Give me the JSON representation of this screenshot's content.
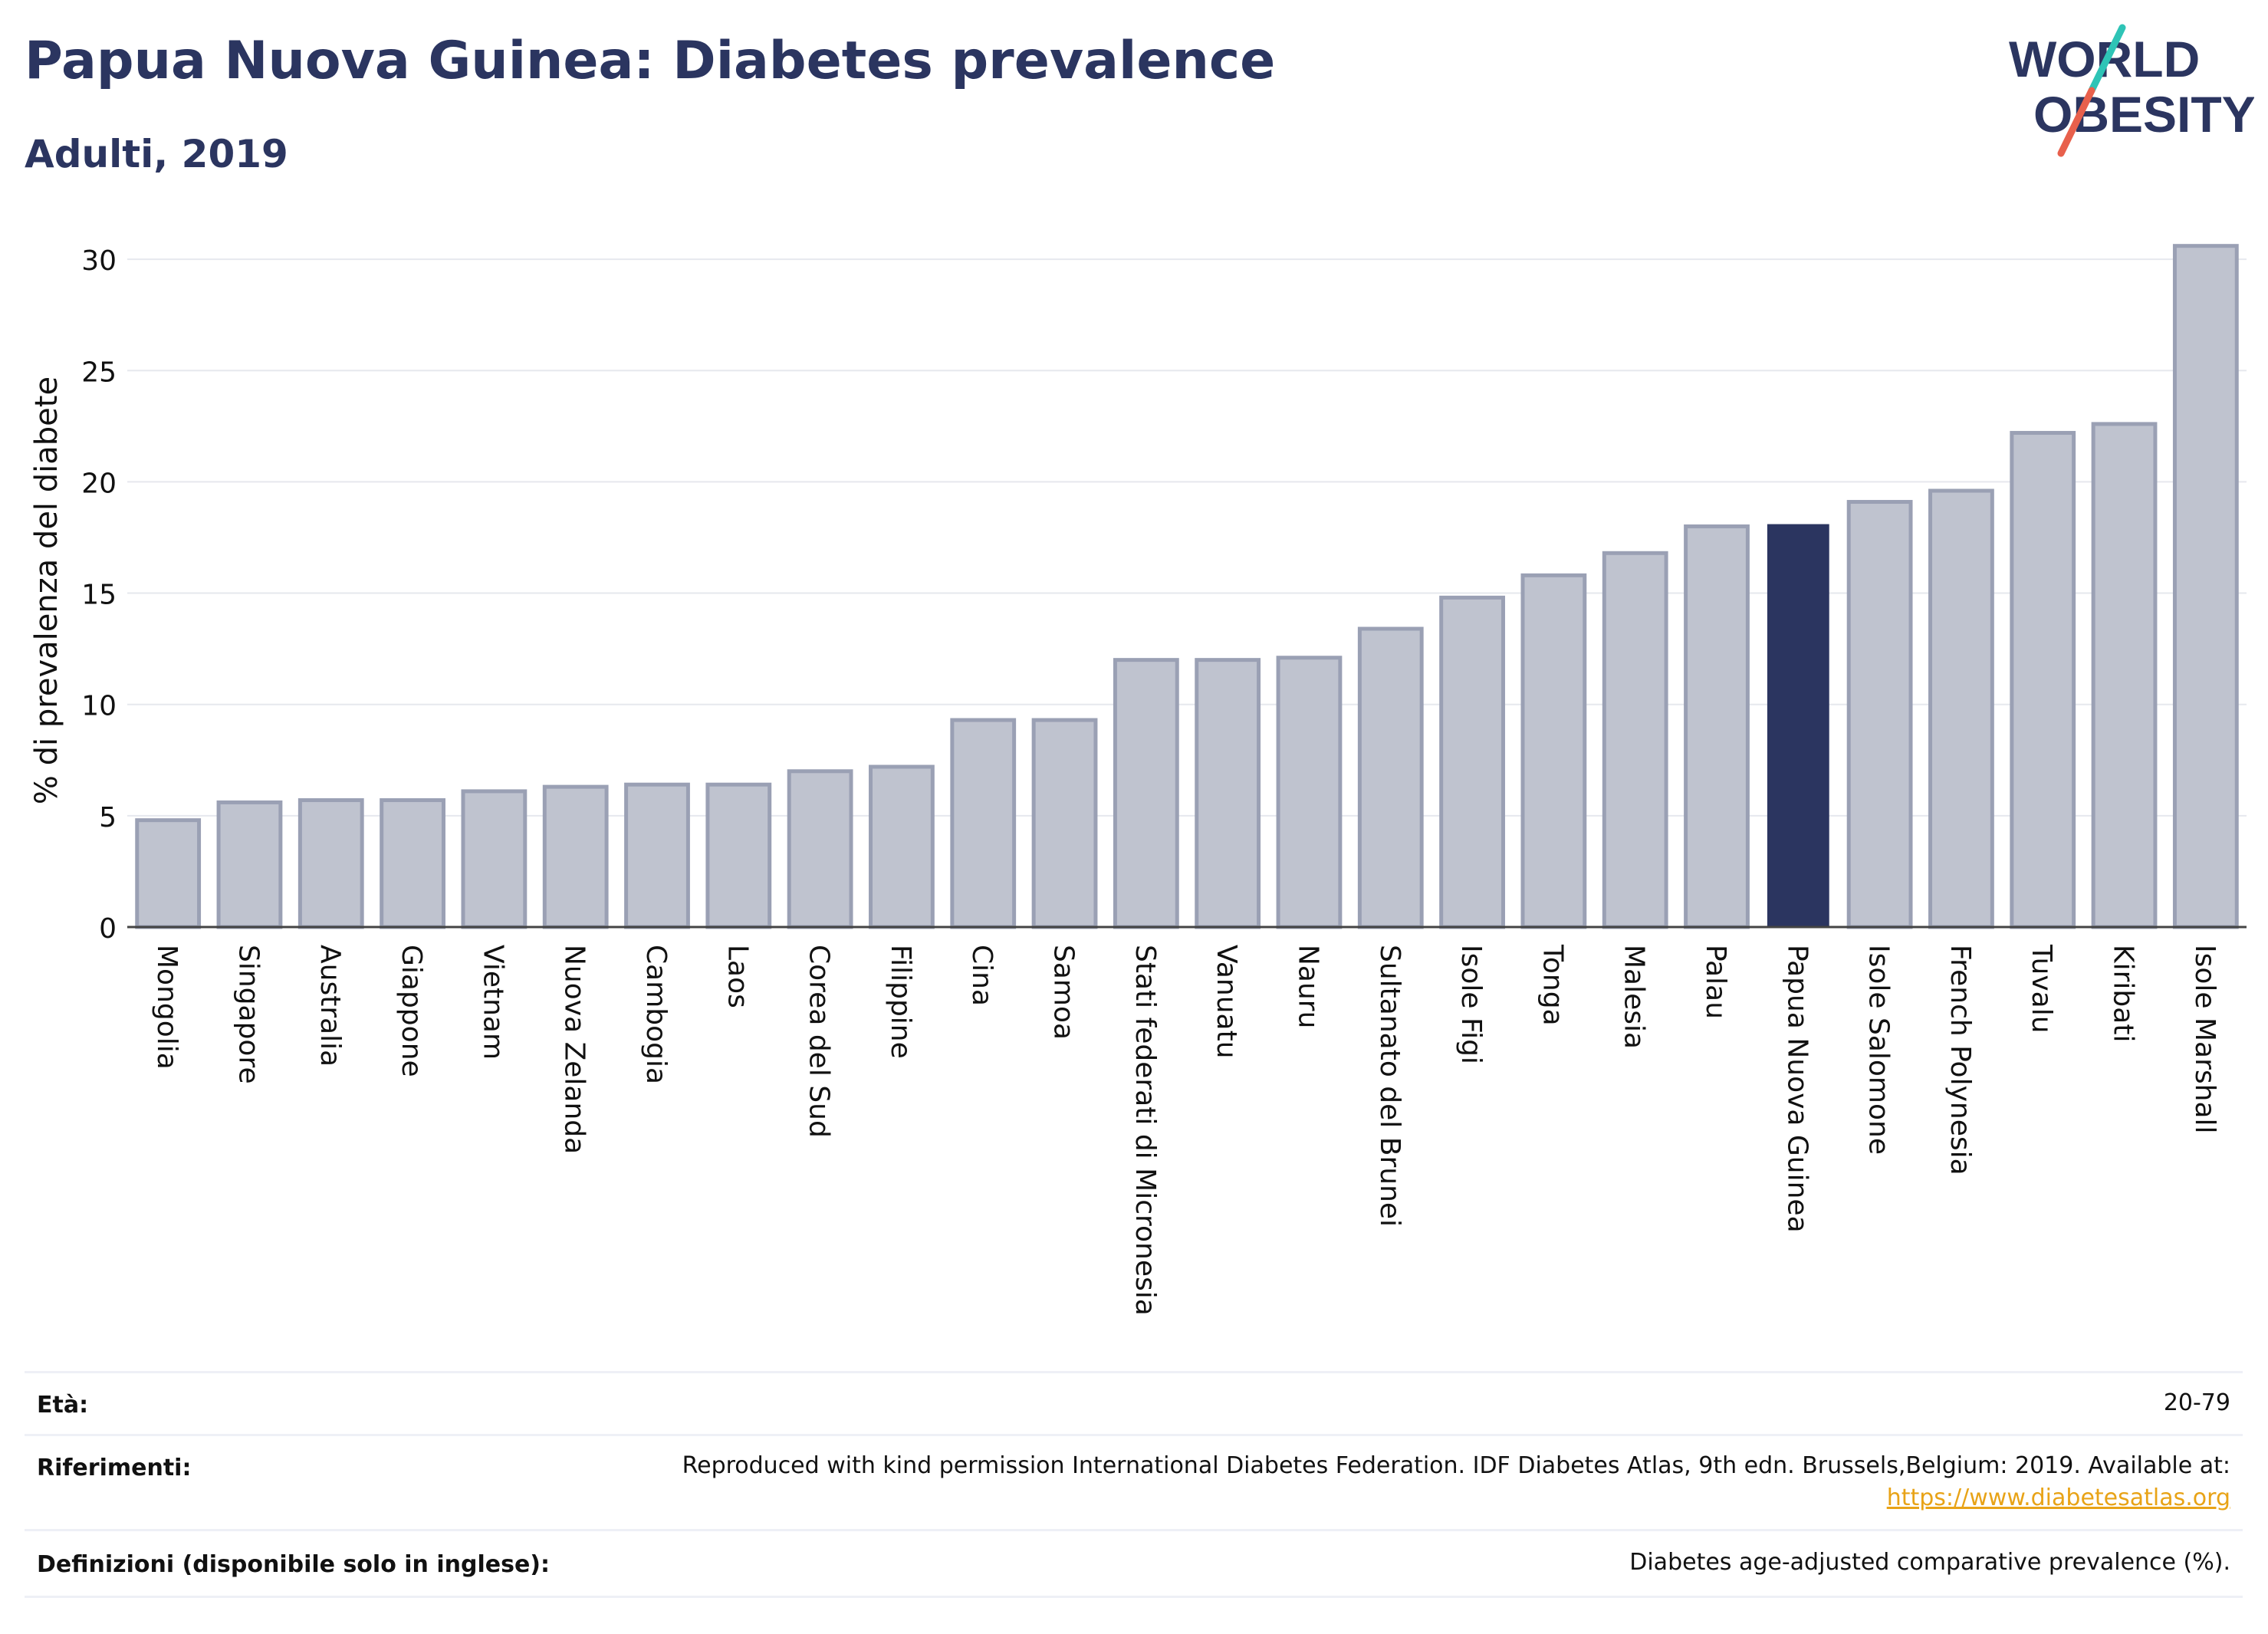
{
  "header": {
    "title": "Papua Nuova Guinea: Diabetes prevalence",
    "subtitle": "Adulti, 2019"
  },
  "logo": {
    "line1": "WORLD",
    "line2": "OBESITY",
    "accent_teal": "#2ec4b6",
    "accent_red": "#e8604c"
  },
  "colors": {
    "bar": "#bfc3cf",
    "bar_edge": "#9aa0b4",
    "highlight": "#2b3560",
    "text": "#2b3560"
  },
  "chart_data": {
    "type": "bar",
    "title": "Papua Nuova Guinea: Diabetes prevalence",
    "subtitle": "Adulti, 2019",
    "xlabel": "",
    "ylabel": "% di prevalenza del diabete",
    "ylim": [
      0,
      32
    ],
    "yticks": [
      0,
      5,
      10,
      15,
      20,
      25,
      30
    ],
    "grid": true,
    "highlight": "Papua Nuova Guinea",
    "categories": [
      "Mongolia",
      "Singapore",
      "Australia",
      "Giappone",
      "Vietnam",
      "Nuova Zelanda",
      "Cambogia",
      "Laos",
      "Corea del Sud",
      "Filippine",
      "Cina",
      "Samoa",
      "Stati federati di Micronesia",
      "Vanuatu",
      "Nauru",
      "Sultanato del Brunei",
      "Isole Figi",
      "Tonga",
      "Malesia",
      "Palau",
      "Papua Nuova Guinea",
      "Isole Salomone",
      "French Polynesia",
      "Tuvalu",
      "Kiribati",
      "Isole Marshall"
    ],
    "values": [
      4.8,
      5.6,
      5.7,
      5.7,
      6.1,
      6.3,
      6.4,
      6.4,
      7.0,
      7.2,
      9.3,
      9.3,
      12.0,
      12.0,
      12.1,
      13.4,
      14.8,
      15.8,
      16.8,
      18.0,
      18.1,
      19.1,
      19.6,
      22.2,
      22.6,
      30.6
    ]
  },
  "info_table": {
    "age_label": "Età:",
    "age_value": "20-79",
    "refs_label": "Riferimenti:",
    "refs_value": "Reproduced with kind permission International Diabetes Federation. IDF Diabetes Atlas, 9th edn. Brussels,Belgium: 2019. Available at:",
    "refs_link": "https://www.diabetesatlas.org",
    "defs_label": "Definizioni (disponibile solo in inglese):",
    "defs_value": "Diabetes age-adjusted comparative prevalence (%)."
  }
}
